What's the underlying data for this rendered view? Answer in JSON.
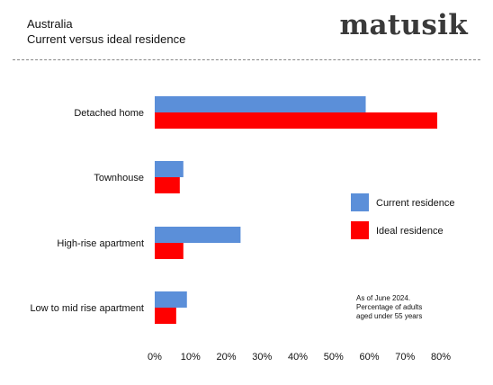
{
  "header": {
    "title": "Australia",
    "subtitle": "Current versus ideal residence",
    "brand": "matusik"
  },
  "note": {
    "lines": [
      "As of June 2024.",
      "Percentage of adults",
      "aged under 55 years"
    ]
  },
  "colors": {
    "current": "#5b8fd9",
    "ideal": "#ff0000"
  },
  "chart_data": {
    "type": "bar",
    "orientation": "horizontal",
    "title": "",
    "xlabel": "",
    "ylabel": "",
    "categories": [
      "Detached home",
      "Townhouse",
      "High-rise apartment",
      "Low to mid rise apartment"
    ],
    "series": [
      {
        "name": "Current residence",
        "values": [
          59,
          8,
          24,
          9
        ]
      },
      {
        "name": "Ideal residence",
        "values": [
          79,
          7,
          8,
          6
        ]
      }
    ],
    "xlim": [
      0,
      80
    ],
    "xticks": [
      "0%",
      "10%",
      "20%",
      "30%",
      "40%",
      "50%",
      "60%",
      "70%",
      "80%"
    ],
    "grid": false,
    "legend_position": "right"
  }
}
